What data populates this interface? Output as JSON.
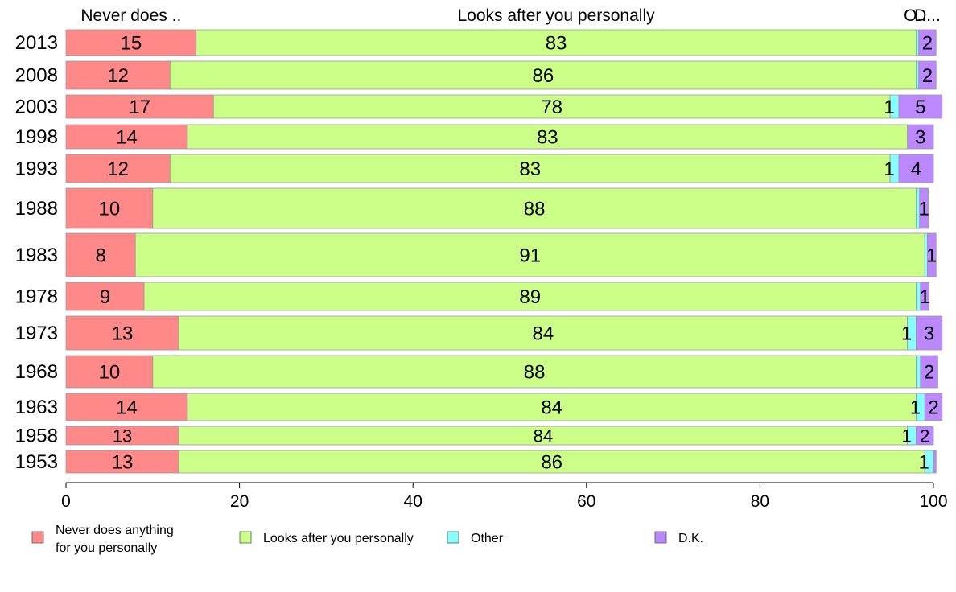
{
  "chart_data": {
    "type": "bar",
    "orientation": "horizontal",
    "stacked": true,
    "categories": [
      "2013",
      "2008",
      "2003",
      "1998",
      "1993",
      "1988",
      "1983",
      "1978",
      "1973",
      "1968",
      "1963",
      "1958",
      "1953"
    ],
    "series": [
      {
        "name": "Never does anything for you personally",
        "color": "#ff8888",
        "values": [
          15,
          12,
          17,
          14,
          12,
          10,
          8,
          9,
          13,
          10,
          14,
          13,
          13
        ]
      },
      {
        "name": "Looks after you personally",
        "color": "#ccff88",
        "values": [
          83,
          86,
          78,
          83,
          83,
          88,
          91,
          89,
          84,
          88,
          84,
          84,
          86
        ]
      },
      {
        "name": "Other",
        "color": "#88ffff",
        "values": [
          0.3,
          0.3,
          1,
          0,
          1,
          0.4,
          0.3,
          0.5,
          1,
          0.5,
          1,
          1,
          1
        ]
      },
      {
        "name": "D.K.",
        "color": "#bb88ff",
        "values": [
          2,
          2,
          5,
          3,
          4,
          1,
          1,
          1,
          3,
          2,
          2,
          2,
          0.3
        ]
      }
    ],
    "xlim": [
      0,
      100
    ],
    "xticks": [
      0,
      20,
      40,
      60,
      80,
      100
    ],
    "top_labels": [
      {
        "text": "Never does ..",
        "series": 0
      },
      {
        "text": "Looks after you personally",
        "series": 1
      },
      {
        "text": "O...",
        "series": 2
      },
      {
        "text": "D...",
        "series": 3
      }
    ],
    "legend": {
      "position": "bottom",
      "entries": [
        {
          "lines": [
            "Never does anything",
            "for you personally"
          ],
          "color": "#ff8888"
        },
        {
          "lines": [
            "Looks after you personally"
          ],
          "color": "#ccff88"
        },
        {
          "lines": [
            "Other"
          ],
          "color": "#88ffff"
        },
        {
          "lines": [
            "D.K."
          ],
          "color": "#bb88ff"
        }
      ]
    },
    "data_labels": [
      [
        "15",
        "83",
        "",
        "2"
      ],
      [
        "12",
        "86",
        "",
        "2"
      ],
      [
        "17",
        "78",
        "1",
        "5"
      ],
      [
        "14",
        "83",
        "",
        "3"
      ],
      [
        "12",
        "83",
        "1",
        "4"
      ],
      [
        "10",
        "88",
        "",
        "1"
      ],
      [
        "8",
        "91",
        "",
        "1"
      ],
      [
        "9",
        "89",
        "",
        "1"
      ],
      [
        "13",
        "84",
        "1",
        "3"
      ],
      [
        "10",
        "88",
        "",
        "2"
      ],
      [
        "14",
        "84",
        "1",
        "2"
      ],
      [
        "13",
        "84",
        "1",
        "2"
      ],
      [
        "13",
        "86",
        "1",
        ""
      ]
    ]
  }
}
